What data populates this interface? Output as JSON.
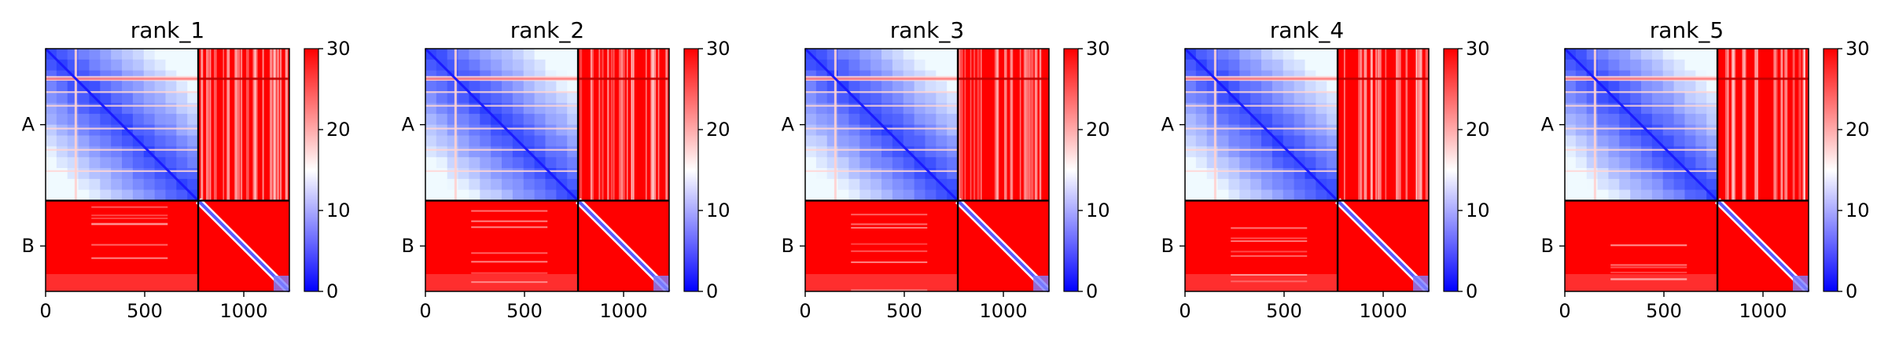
{
  "chart_data": [
    {
      "type": "heatmap",
      "title": "rank_1",
      "x_range": [
        0,
        1230
      ],
      "x_ticks": [
        0,
        500,
        1000
      ],
      "y_ticks": [
        "A",
        "B"
      ],
      "chain_boundary": 770,
      "colorbar": {
        "colormap": "bwr",
        "min": 0,
        "max": 30,
        "ticks": [
          0,
          10,
          20,
          30
        ]
      },
      "blocks": {
        "A-A": "low (blue), diagonal ~0",
        "A-B": "~30 (red)",
        "B-A": "~30 (red)",
        "B-B": "~30 (red), diagonal ~0"
      }
    },
    {
      "type": "heatmap",
      "title": "rank_2",
      "x_range": [
        0,
        1230
      ],
      "x_ticks": [
        0,
        500,
        1000
      ],
      "y_ticks": [
        "A",
        "B"
      ],
      "chain_boundary": 770,
      "colorbar": {
        "colormap": "bwr",
        "min": 0,
        "max": 30,
        "ticks": [
          0,
          10,
          20,
          30
        ]
      },
      "blocks": {
        "A-A": "low (blue), diagonal ~0",
        "A-B": "~30 (red)",
        "B-A": "~30 (red)",
        "B-B": "~30 (red), diagonal ~0"
      }
    },
    {
      "type": "heatmap",
      "title": "rank_3",
      "x_range": [
        0,
        1230
      ],
      "x_ticks": [
        0,
        500,
        1000
      ],
      "y_ticks": [
        "A",
        "B"
      ],
      "chain_boundary": 770,
      "colorbar": {
        "colormap": "bwr",
        "min": 0,
        "max": 30,
        "ticks": [
          0,
          10,
          20,
          30
        ]
      },
      "blocks": {
        "A-A": "low (blue), diagonal ~0",
        "A-B": "~30 (red)",
        "B-A": "~30 (red)",
        "B-B": "~30 (red), diagonal ~0"
      }
    },
    {
      "type": "heatmap",
      "title": "rank_4",
      "x_range": [
        0,
        1230
      ],
      "x_ticks": [
        0,
        500,
        1000
      ],
      "y_ticks": [
        "A",
        "B"
      ],
      "chain_boundary": 770,
      "colorbar": {
        "colormap": "bwr",
        "min": 0,
        "max": 30,
        "ticks": [
          0,
          10,
          20,
          30
        ]
      },
      "blocks": {
        "A-A": "low (blue), diagonal ~0",
        "A-B": "~30 (red)",
        "B-A": "~30 (red)",
        "B-B": "~30 (red), diagonal ~0"
      }
    },
    {
      "type": "heatmap",
      "title": "rank_5",
      "x_range": [
        0,
        1230
      ],
      "x_ticks": [
        0,
        500,
        1000
      ],
      "y_ticks": [
        "A",
        "B"
      ],
      "chain_boundary": 770,
      "colorbar": {
        "colormap": "bwr",
        "min": 0,
        "max": 30,
        "ticks": [
          0,
          10,
          20,
          30
        ]
      },
      "blocks": {
        "A-A": "low (blue), diagonal ~0",
        "A-B": "~30 (red)",
        "B-A": "~30 (red)",
        "B-B": "~30 (red), diagonal ~0"
      }
    }
  ],
  "colors": {
    "low": "#0000ff",
    "mid": "#ffffff",
    "high": "#ff0000",
    "line": "#000000"
  }
}
